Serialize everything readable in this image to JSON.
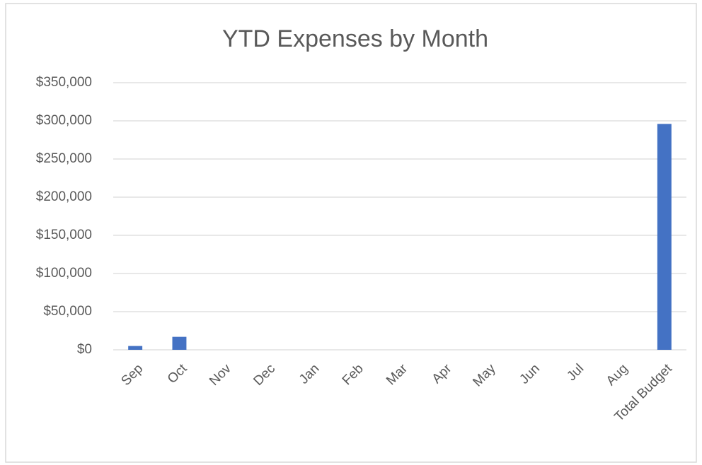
{
  "chart_data": {
    "type": "bar",
    "title": "YTD Expenses by Month",
    "categories": [
      "Sep",
      "Oct",
      "Nov",
      "Dec",
      "Jan",
      "Feb",
      "Mar",
      "Apr",
      "May",
      "Jun",
      "Jul",
      "Aug",
      "Total Budget"
    ],
    "values": [
      5000,
      17000,
      null,
      null,
      null,
      null,
      null,
      null,
      null,
      null,
      null,
      null,
      296000
    ],
    "color": "#4472c4",
    "ylim": [
      0,
      350000
    ],
    "yticks": [
      {
        "value": 0,
        "label": "$0"
      },
      {
        "value": 50000,
        "label": "$50,000"
      },
      {
        "value": 100000,
        "label": "$100,000"
      },
      {
        "value": 150000,
        "label": "$150,000"
      },
      {
        "value": 200000,
        "label": "$200,000"
      },
      {
        "value": 250000,
        "label": "$250,000"
      },
      {
        "value": 300000,
        "label": "$300,000"
      },
      {
        "value": 350000,
        "label": "$350,000"
      }
    ],
    "grid": true
  }
}
